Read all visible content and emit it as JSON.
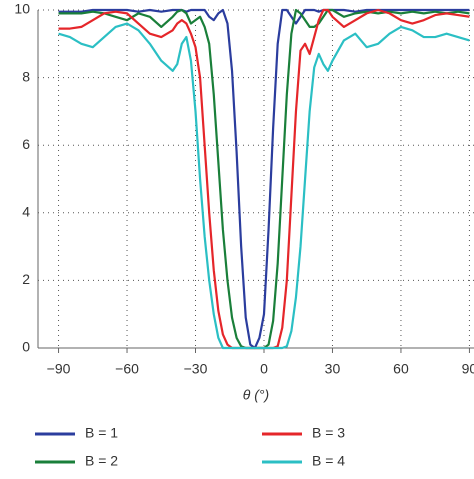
{
  "chart_data": {
    "type": "line",
    "xlabel": "θ (°)",
    "x": [
      -90,
      -85,
      -80,
      -75,
      -70,
      -65,
      -60,
      -55,
      -50,
      -45,
      -40,
      -38,
      -36,
      -34,
      -32,
      -30,
      -28,
      -26,
      -24,
      -22,
      -20,
      -18,
      -16,
      -14,
      -12,
      -10,
      -8,
      -6,
      -4,
      -2,
      0,
      2,
      4,
      6,
      8,
      10,
      12,
      14,
      16,
      18,
      20,
      22,
      24,
      26,
      28,
      30,
      35,
      40,
      45,
      50,
      55,
      60,
      65,
      70,
      75,
      80,
      85,
      90
    ],
    "series": [
      {
        "name": "B = 1",
        "color": "#2b3d9e",
        "values": [
          9.95,
          9.95,
          9.95,
          10,
          10,
          10,
          10,
          9.95,
          10,
          9.95,
          10,
          10,
          10,
          9.95,
          10,
          10,
          10,
          10,
          9.8,
          9.7,
          9.9,
          10,
          9.6,
          8.2,
          5.8,
          3,
          0.9,
          0.1,
          0,
          0.3,
          1,
          3.5,
          6.5,
          9,
          10,
          10,
          9.8,
          9.6,
          9.8,
          10,
          10,
          10,
          9.95,
          10,
          10,
          10,
          10,
          9.95,
          10,
          10,
          10,
          10,
          10,
          10,
          10,
          10,
          10,
          10
        ]
      },
      {
        "name": "B = 2",
        "color": "#1a7f3a",
        "values": [
          9.9,
          9.9,
          9.9,
          9.95,
          9.9,
          9.8,
          9.7,
          9.9,
          9.8,
          9.5,
          9.8,
          9.95,
          10,
          9.9,
          9.6,
          9.7,
          9.8,
          9.5,
          9,
          7.5,
          5.5,
          3.5,
          2,
          0.9,
          0.3,
          0.05,
          0,
          0,
          0,
          0,
          0,
          0.1,
          0.8,
          2.5,
          5,
          7.5,
          9.3,
          10,
          9.9,
          9.7,
          9.5,
          9.5,
          9.6,
          9.8,
          10,
          10,
          9.8,
          9.9,
          9.95,
          9.9,
          9.95,
          9.9,
          9.95,
          9.9,
          9.95,
          9.9,
          9.95,
          9.9
        ]
      },
      {
        "name": "B = 3",
        "color": "#e5262a",
        "values": [
          9.45,
          9.45,
          9.5,
          9.7,
          9.9,
          9.95,
          9.9,
          9.6,
          9.3,
          9.2,
          9.4,
          9.6,
          9.7,
          9.6,
          9.3,
          8.9,
          8,
          6,
          4,
          2.3,
          1.1,
          0.4,
          0.1,
          0,
          0,
          0,
          0,
          0,
          0,
          0,
          0,
          0,
          0,
          0.05,
          0.6,
          2,
          4.5,
          7,
          8.8,
          9,
          8.7,
          9.2,
          9.7,
          10,
          10,
          9.8,
          9.5,
          9.7,
          9.9,
          10,
          9.9,
          9.7,
          9.6,
          9.7,
          9.85,
          9.9,
          9.85,
          9.8
        ]
      },
      {
        "name": "B = 4",
        "color": "#2bbfc4",
        "values": [
          9.3,
          9.2,
          9.0,
          8.9,
          9.2,
          9.5,
          9.6,
          9.4,
          9.0,
          8.5,
          8.2,
          8.4,
          9,
          9.2,
          8.5,
          7,
          5,
          3.3,
          2,
          1,
          0.3,
          0,
          0,
          0,
          0,
          0,
          0,
          0,
          0,
          0,
          0,
          0,
          0,
          0,
          0,
          0.05,
          0.5,
          1.5,
          3,
          5,
          7,
          8.3,
          8.7,
          8.4,
          8.2,
          8.5,
          9.1,
          9.3,
          8.9,
          9.0,
          9.3,
          9.5,
          9.4,
          9.2,
          9.2,
          9.3,
          9.2,
          9.1
        ]
      }
    ],
    "xlim": [
      -99,
      92
    ],
    "ylim": [
      0,
      10
    ],
    "xticks": [
      {
        "value": -90,
        "label": "−90"
      },
      {
        "value": -60,
        "label": "−60"
      },
      {
        "value": -30,
        "label": "−30"
      },
      0,
      30,
      60,
      90
    ],
    "yticks": [
      0,
      2,
      4,
      6,
      8,
      10
    ],
    "grid": true
  }
}
